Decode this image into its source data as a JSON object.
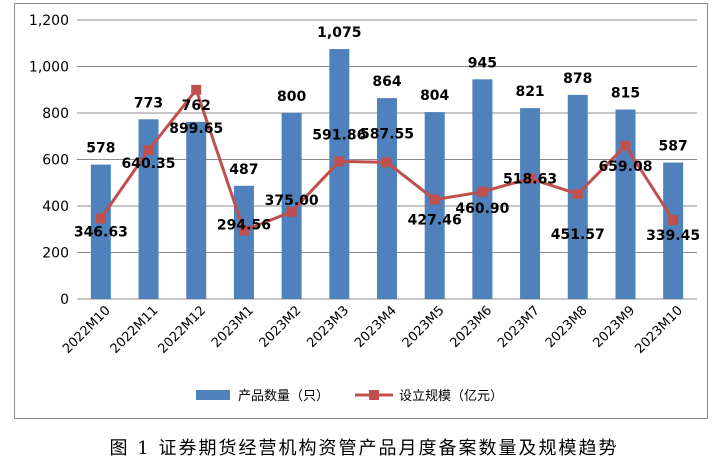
{
  "chart_data": {
    "type": "bar",
    "categories": [
      "2022M10",
      "2022M11",
      "2022M12",
      "2023M1",
      "2023M2",
      "2023M3",
      "2023M4",
      "2023M5",
      "2023M6",
      "2023M7",
      "2023M8",
      "2023M9",
      "2023M10"
    ],
    "series": [
      {
        "name": "产品数量（只）",
        "type": "bar",
        "color": "#4f81bd",
        "values": [
          578,
          773,
          762,
          487,
          800,
          1075,
          864,
          804,
          945,
          821,
          878,
          815,
          587
        ],
        "labels": [
          "578",
          "773",
          "762",
          "487",
          "800",
          "1,075",
          "864",
          "804",
          "945",
          "821",
          "878",
          "815",
          "587"
        ]
      },
      {
        "name": "设立规模（亿元）",
        "type": "line",
        "color": "#c0504d",
        "values": [
          346.63,
          640.35,
          899.65,
          294.56,
          375.0,
          591.86,
          587.55,
          427.46,
          460.9,
          518.63,
          451.57,
          659.08,
          339.45
        ],
        "labels": [
          "346.63",
          "640.35",
          "899.65",
          "294.56",
          "375.00",
          "591.86",
          "587.55",
          "427.46",
          "460.90",
          "518.63",
          "451.57",
          "659.08",
          "339.45"
        ]
      }
    ],
    "y_ticks": [
      "0",
      "200",
      "400",
      "600",
      "800",
      "1,000",
      "1,200"
    ],
    "ylim": [
      0,
      1200
    ],
    "grid": true,
    "legend_position": "bottom"
  },
  "caption": "图 1   证券期货经营机构资管产品月度备案数量及规模趋势"
}
